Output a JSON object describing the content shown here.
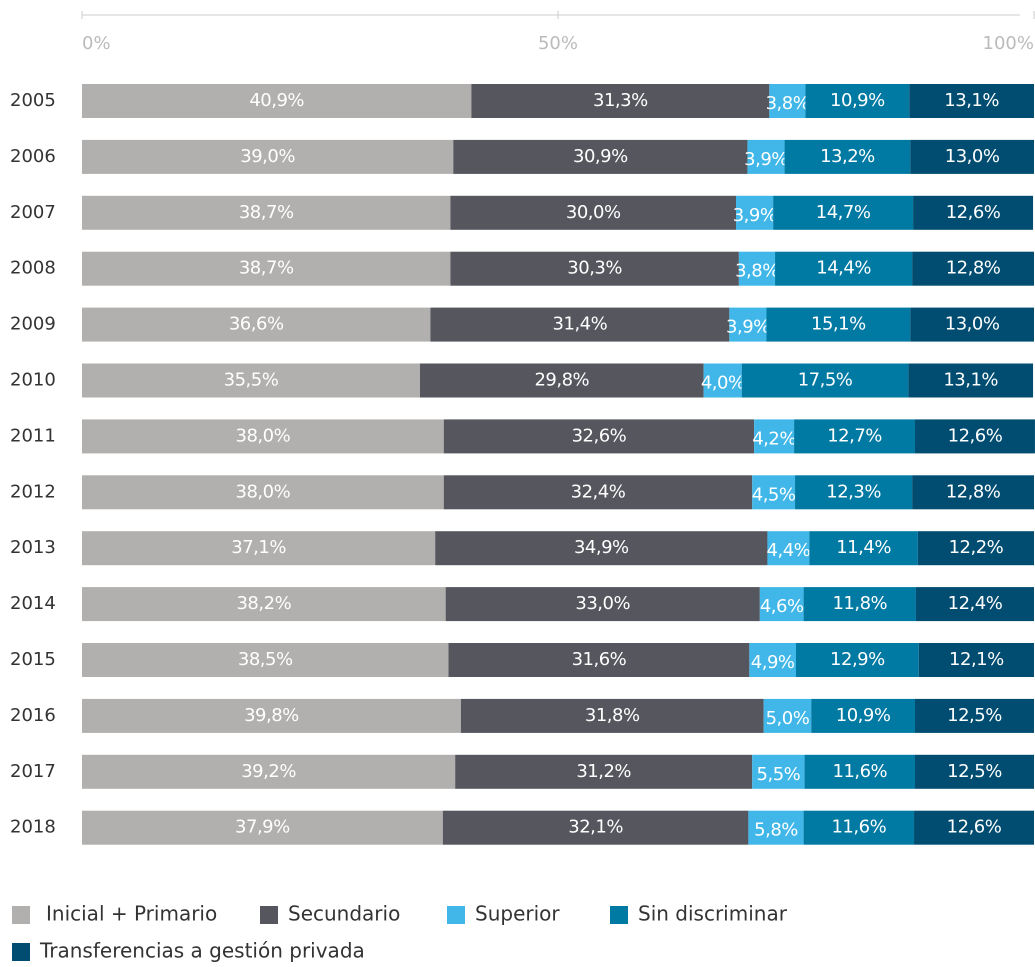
{
  "chart_data": {
    "type": "stacked-bar-horizontal",
    "categories": [
      "2005",
      "2006",
      "2007",
      "2008",
      "2009",
      "2010",
      "2011",
      "2012",
      "2013",
      "2014",
      "2015",
      "2016",
      "2017",
      "2018"
    ],
    "xlim": [
      0,
      100
    ],
    "xticks": [
      {
        "value": 0,
        "label": "0%"
      },
      {
        "value": 50,
        "label": "50%"
      },
      {
        "value": 100,
        "label": "100%"
      }
    ],
    "series": [
      {
        "name": "Inicial + Primario",
        "color": "#b1b0af",
        "values": [
          40.9,
          39.0,
          38.7,
          38.7,
          36.6,
          35.5,
          38.0,
          38.0,
          37.1,
          38.2,
          38.5,
          39.8,
          39.2,
          37.9
        ],
        "value_labels": [
          "40,9%",
          "39,0%",
          "38,7%",
          "38,7%",
          "36,6%",
          "35,5%",
          "38,0%",
          "38,0%",
          "37,1%",
          "38,2%",
          "38,5%",
          "39,8%",
          "39,2%",
          "37,9%"
        ]
      },
      {
        "name": "Secundario",
        "color": "#56565e",
        "values": [
          31.3,
          30.9,
          30.0,
          30.3,
          31.4,
          29.8,
          32.6,
          32.4,
          34.9,
          33.0,
          31.6,
          31.8,
          31.2,
          32.1
        ],
        "value_labels": [
          "31,3%",
          "30,9%",
          "30,0%",
          "30,3%",
          "31,4%",
          "29,8%",
          "32,6%",
          "32,4%",
          "34,9%",
          "33,0%",
          "31,6%",
          "31,8%",
          "31,2%",
          "32,1%"
        ]
      },
      {
        "name": "Superior",
        "color": "#40b7e8",
        "values": [
          3.8,
          3.9,
          3.9,
          3.8,
          3.9,
          4.0,
          4.2,
          4.5,
          4.4,
          4.6,
          4.9,
          5.0,
          5.5,
          5.8
        ],
        "value_labels": [
          "3,8%",
          "3,9%",
          "3,9%",
          "3,8%",
          "3,9%",
          "4,0%",
          "4,2%",
          "4,5%",
          "4,4%",
          "4,6%",
          "4,9%",
          "5,0%",
          "5,5%",
          "5,8%"
        ]
      },
      {
        "name": "Sin discriminar",
        "color": "#0079a3",
        "values": [
          10.9,
          13.2,
          14.7,
          14.4,
          15.1,
          17.5,
          12.7,
          12.3,
          11.4,
          11.8,
          12.9,
          10.9,
          11.6,
          11.6
        ],
        "value_labels": [
          "10,9%",
          "13,2%",
          "14,7%",
          "14,4%",
          "15,1%",
          "17,5%",
          "12,7%",
          "12,3%",
          "11,4%",
          "11,8%",
          "12,9%",
          "10,9%",
          "11,6%",
          "11,6%"
        ]
      },
      {
        "name": "Transferencias a gestión privada",
        "color": "#004d71",
        "values": [
          13.1,
          13.0,
          12.6,
          12.8,
          13.0,
          13.1,
          12.6,
          12.8,
          12.2,
          12.4,
          12.1,
          12.5,
          12.5,
          12.6
        ],
        "value_labels": [
          "13,1%",
          "13,0%",
          "12,6%",
          "12,8%",
          "13,0%",
          "13,1%",
          "12,6%",
          "12,8%",
          "12,2%",
          "12,4%",
          "12,1%",
          "12,5%",
          "12,5%",
          "12,6%"
        ]
      }
    ],
    "legend": "bottom-left"
  }
}
